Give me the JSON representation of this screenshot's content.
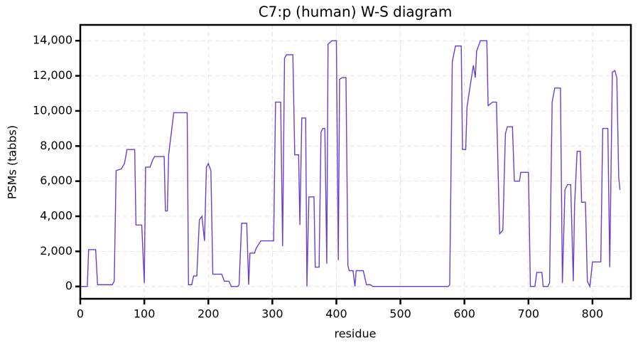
{
  "chart_data": {
    "type": "line",
    "title": "C7:p (human) W-S diagram",
    "xlabel": "residue",
    "ylabel": "PSMs (tabbs)",
    "color": "#6a3fd0",
    "grid": true,
    "xlim": [
      0,
      860
    ],
    "ylim": [
      -700,
      14900
    ],
    "xticks": [
      0,
      100,
      200,
      300,
      400,
      500,
      600,
      700,
      800
    ],
    "yticks": [
      0,
      {
        "value": 2000,
        "label": "2,000"
      },
      {
        "value": 4000,
        "label": "4,000"
      },
      {
        "value": 6000,
        "label": "6,000"
      },
      {
        "value": 8000,
        "label": "8,000"
      },
      {
        "value": 10000,
        "label": "10,000"
      },
      {
        "value": 12000,
        "label": "12,000"
      },
      {
        "value": 14000,
        "label": "14,000"
      }
    ],
    "x": [
      0,
      11,
      13,
      24,
      27,
      50,
      53,
      56,
      64,
      69,
      73,
      85,
      87,
      96,
      100,
      102,
      109,
      113,
      116,
      131,
      133,
      136,
      138,
      143,
      146,
      167,
      169,
      174,
      177,
      182,
      186,
      190,
      194,
      197,
      200,
      204,
      207,
      221,
      225,
      232,
      236,
      246,
      248,
      252,
      260,
      263,
      265,
      272,
      275,
      282,
      302,
      305,
      313,
      316,
      319,
      322,
      332,
      335,
      341,
      343,
      346,
      352,
      354,
      357,
      365,
      367,
      373,
      376,
      379,
      382,
      385,
      387,
      393,
      400,
      403,
      405,
      409,
      415,
      418,
      420,
      426,
      429,
      431,
      442,
      447,
      453,
      457,
      575,
      577,
      581,
      586,
      595,
      597,
      602,
      604,
      608,
      614,
      617,
      619,
      625,
      635,
      637,
      644,
      650,
      655,
      660,
      664,
      667,
      675,
      678,
      686,
      688,
      700,
      703,
      710,
      713,
      721,
      723,
      730,
      733,
      737,
      741,
      750,
      753,
      757,
      761,
      766,
      770,
      772,
      776,
      781,
      783,
      789,
      792,
      796,
      800,
      813,
      816,
      824,
      827,
      831,
      835,
      838,
      841,
      843
    ],
    "values": [
      0,
      0,
      2100,
      2100,
      100,
      100,
      300,
      6600,
      6700,
      7000,
      7800,
      7800,
      3500,
      3500,
      200,
      6800,
      6800,
      7200,
      7400,
      7400,
      4300,
      4300,
      7500,
      9000,
      9900,
      9900,
      100,
      100,
      600,
      600,
      3800,
      4000,
      2600,
      6800,
      7000,
      6600,
      700,
      700,
      300,
      300,
      0,
      0,
      100,
      3600,
      3600,
      100,
      1900,
      1900,
      2200,
      2600,
      2600,
      10500,
      10500,
      2300,
      13000,
      13200,
      13200,
      7500,
      7500,
      3500,
      9600,
      9600,
      0,
      5100,
      5100,
      1100,
      1100,
      8800,
      9000,
      9000,
      1300,
      13800,
      14000,
      14000,
      1500,
      11800,
      11900,
      11900,
      1200,
      900,
      900,
      0,
      900,
      900,
      100,
      100,
      0,
      0,
      100,
      12800,
      13700,
      13700,
      7800,
      7800,
      10200,
      11200,
      12600,
      11900,
      13400,
      14000,
      14000,
      10300,
      10500,
      10500,
      3000,
      3200,
      8700,
      9100,
      9100,
      6000,
      6000,
      6500,
      6500,
      0,
      0,
      800,
      800,
      0,
      0,
      200,
      10500,
      11300,
      11300,
      200,
      5500,
      5800,
      5800,
      300,
      4600,
      7700,
      7700,
      4800,
      4800,
      300,
      0,
      1400,
      1400,
      9000,
      9000,
      1100,
      12200,
      12300,
      11900,
      6200,
      5500
    ]
  }
}
